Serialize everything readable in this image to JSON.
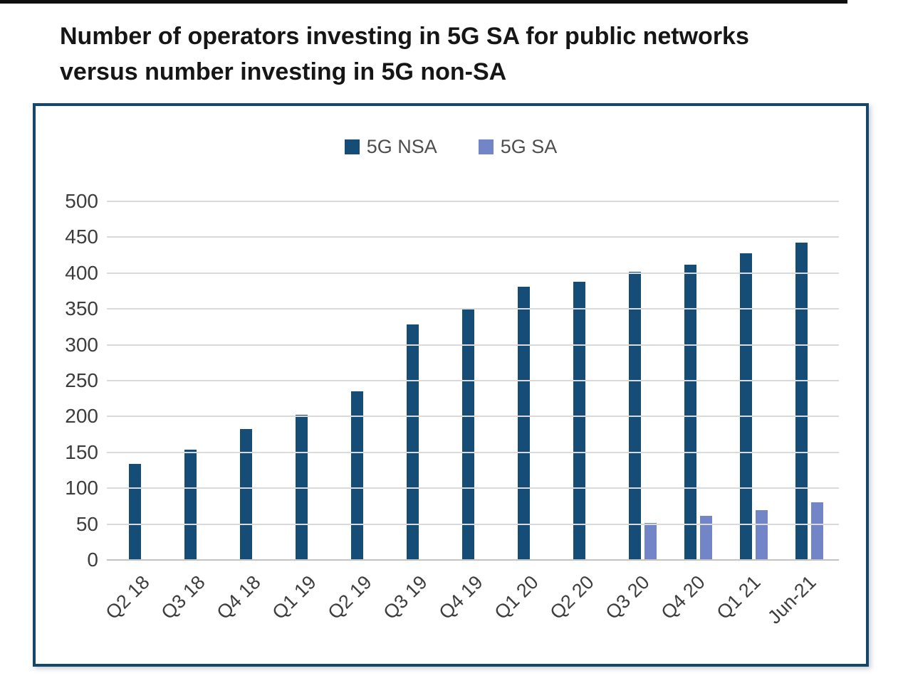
{
  "page": {
    "title_line1": "Number of operators investing in 5G SA for public networks",
    "title_line2": "versus number investing in 5G non-SA"
  },
  "chart_data": {
    "type": "bar",
    "title": "Number of operators investing in 5G SA for public networks versus number investing in 5G non-SA",
    "categories": [
      "Q2 18",
      "Q3 18",
      "Q4 18",
      "Q1 19",
      "Q2 19",
      "Q3 19",
      "Q4 19",
      "Q1 20",
      "Q2 20",
      "Q3 20",
      "Q4 20",
      "Q1 21",
      "Jun-21"
    ],
    "series": [
      {
        "name": "5G NSA",
        "color": "#164d76",
        "values": [
          134,
          154,
          183,
          202,
          235,
          328,
          349,
          381,
          388,
          402,
          412,
          428,
          442
        ]
      },
      {
        "name": "5G SA",
        "color": "#7286c7",
        "values": [
          null,
          null,
          null,
          null,
          null,
          null,
          null,
          null,
          null,
          52,
          62,
          69,
          80
        ]
      }
    ],
    "xlabel": "",
    "ylabel": "",
    "ylim": [
      0,
      500
    ],
    "yticks": [
      0,
      50,
      100,
      150,
      200,
      250,
      300,
      350,
      400,
      450,
      500
    ],
    "grid": "horizontal",
    "legend_position": "top-center"
  },
  "colors": {
    "bar_nsa": "#164d76",
    "bar_sa": "#7286c7",
    "box_border": "#17466b",
    "gridline": "#dadada",
    "axis_zero_line": "#c3c3c3",
    "tick_text": "#3d3d3d",
    "legend_text": "#4d4d4d",
    "title_text": "#161616",
    "top_rule": "#0f0f0f"
  }
}
